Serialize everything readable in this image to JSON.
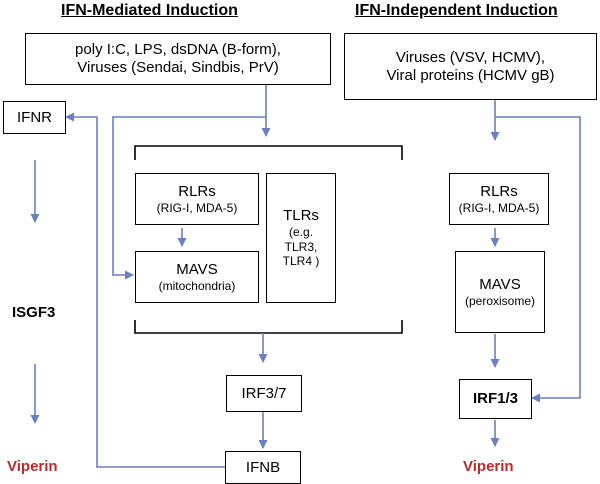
{
  "headings": {
    "left": "IFN-Mediated Induction",
    "right": "IFN-Independent Induction"
  },
  "left": {
    "stimuli": {
      "line1": "poly I:C, LPS, dsDNA (B-form),",
      "line2": "Viruses (Sendai, Sindbis, PrV)"
    },
    "ifnr": "IFNR",
    "isgf3": "ISGF3",
    "viperin": "Viperin",
    "rlrs": {
      "title": "RLRs",
      "sub": "(RIG-I, MDA-5)"
    },
    "mavs": {
      "title": "MAVS",
      "sub": "(mitochondria)"
    },
    "tlrs": {
      "title": "TLRs",
      "line2": "(e.g.",
      "line3": "TLR3,",
      "line4": "TLR4 )"
    },
    "irf": "IRF3/7",
    "ifnb": "IFNB"
  },
  "right": {
    "stimuli": {
      "line1": "Viruses (VSV, HCMV),",
      "line2": "Viral proteins (HCMV gB)"
    },
    "rlrs": {
      "title": "RLRs",
      "sub": "(RIG-I, MDA-5)"
    },
    "mavs": {
      "title": "MAVS",
      "sub": "(peroxisome)"
    },
    "irf": "IRF1/3",
    "viperin": "Viperin"
  },
  "colors": {
    "arrow": "#6b7fc4",
    "box_border": "#000000",
    "viperin": "#c0282a"
  }
}
